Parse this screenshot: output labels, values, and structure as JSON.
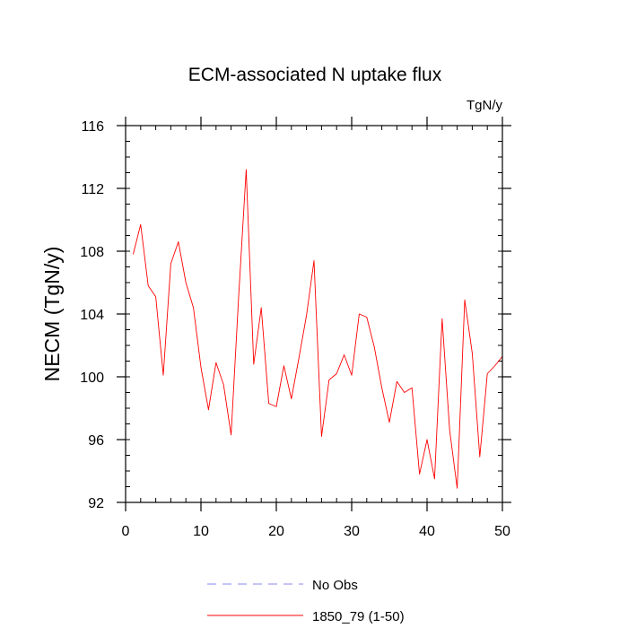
{
  "chart_data": {
    "type": "line",
    "title": "ECM-associated N uptake flux",
    "units": "TgN/y",
    "xlabel": "",
    "ylabel": "NECM  (TgN/y)",
    "xlim": [
      0,
      50
    ],
    "ylim": [
      92,
      116
    ],
    "x_ticks": [
      0,
      10,
      20,
      30,
      40,
      50
    ],
    "y_ticks": [
      92,
      96,
      100,
      104,
      108,
      112,
      116
    ],
    "series": [
      {
        "name": "1850_79 (1-50)",
        "color": "#ff0000",
        "style": "solid",
        "x": [
          1,
          2,
          3,
          4,
          5,
          6,
          7,
          8,
          9,
          10,
          11,
          12,
          13,
          14,
          15,
          16,
          17,
          18,
          19,
          20,
          21,
          22,
          23,
          24,
          25,
          26,
          27,
          28,
          29,
          30,
          31,
          32,
          33,
          34,
          35,
          36,
          37,
          38,
          39,
          40,
          41,
          42,
          43,
          44,
          45,
          46,
          47,
          48,
          49,
          50
        ],
        "values": [
          107.8,
          109.7,
          105.8,
          105.1,
          100.1,
          107.2,
          108.6,
          106.0,
          104.4,
          100.6,
          97.9,
          100.9,
          99.5,
          96.3,
          105.1,
          113.2,
          100.8,
          104.4,
          98.3,
          98.1,
          100.7,
          98.6,
          101.2,
          103.9,
          107.4,
          96.2,
          99.8,
          100.2,
          101.4,
          100.1,
          104.0,
          103.8,
          101.9,
          99.3,
          97.1,
          99.7,
          99.0,
          99.3,
          93.8,
          96.0,
          93.5,
          103.7,
          96.6,
          92.9,
          104.9,
          101.5,
          94.9,
          100.2,
          100.7,
          101.3
        ]
      }
    ],
    "legend": [
      {
        "label": "No Obs",
        "color": "#8888ee",
        "style": "dashed"
      },
      {
        "label": "1850_79 (1-50)",
        "color": "#ff0000",
        "style": "solid"
      }
    ],
    "legend_position": "bottom-center"
  }
}
